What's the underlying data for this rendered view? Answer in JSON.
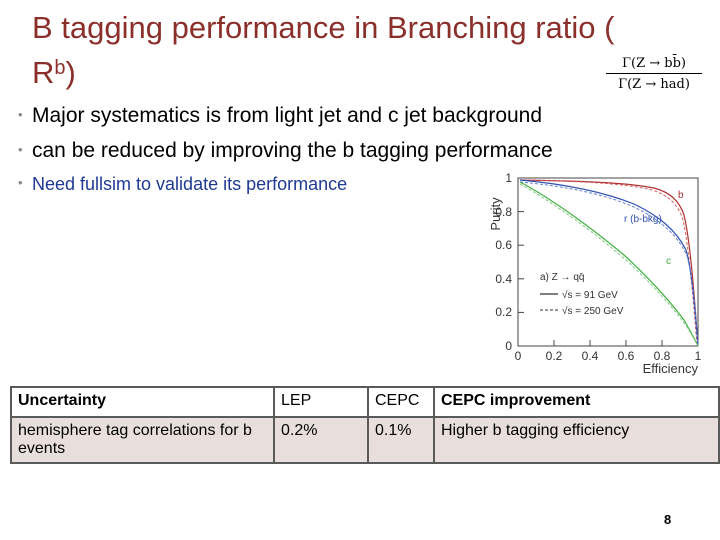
{
  "title": {
    "main": "B tagging performance in Branching ratio (",
    "line2": "R",
    "sup": "b",
    "close": ")"
  },
  "formula": {
    "numerator": "Γ(Z → bb̄)",
    "denominator": "Γ(Z → had)"
  },
  "bullets": [
    "Major systematics is from light jet and c jet background",
    "can be reduced by improving the b tagging performance",
    "Need fullsim to validate its performance"
  ],
  "plot": {
    "ylabel": "Purity",
    "xlabel": "Efficiency",
    "xticks": [
      "0",
      "0.2",
      "0.4",
      "0.6",
      "0.8",
      "1"
    ],
    "yticks": [
      "0",
      "0.2",
      "0.4",
      "0.6",
      "0.8",
      "1"
    ],
    "curve_labels": {
      "b": "b",
      "rb": "r (b-bkg)",
      "c": "c"
    },
    "legend": {
      "process": "a) Z → qq̄",
      "s91": "√s = 91 GeV",
      "s250": "√s = 250 GeV"
    }
  },
  "table": {
    "headers": [
      "Uncertainty",
      "LEP",
      "CEPC",
      "CEPC improvement"
    ],
    "row": [
      "hemisphere tag correlations for b events",
      "0.2%",
      "0.1%",
      "Higher b tagging efficiency"
    ]
  },
  "page_number": "8"
}
